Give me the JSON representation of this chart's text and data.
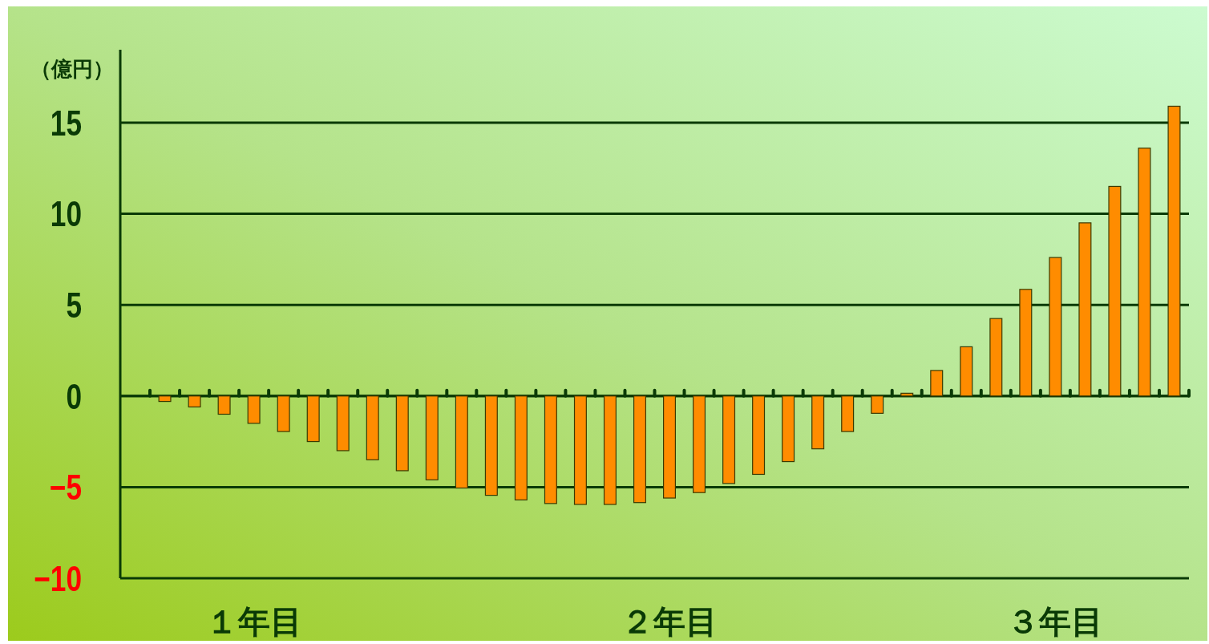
{
  "chart_data": {
    "type": "bar",
    "ylabel": "（億円）",
    "categories": [
      null,
      null,
      null,
      null,
      "１年目",
      null,
      null,
      null,
      null,
      null,
      null,
      null,
      null,
      null,
      null,
      null,
      null,
      null,
      "２年目",
      null,
      null,
      null,
      null,
      null,
      null,
      null,
      null,
      null,
      null,
      null,
      null,
      "３年目",
      null,
      null,
      null,
      null
    ],
    "values": [
      null,
      -0.3,
      -0.6,
      -1.0,
      -1.5,
      -1.95,
      -2.5,
      -3.0,
      -3.5,
      -4.1,
      -4.6,
      -5.05,
      -5.45,
      -5.7,
      -5.9,
      -5.95,
      -5.95,
      -5.85,
      -5.6,
      -5.3,
      -4.8,
      -4.3,
      -3.6,
      -2.9,
      -1.95,
      -0.95,
      0.15,
      1.4,
      2.7,
      4.25,
      5.85,
      7.6,
      9.5,
      11.5,
      13.6,
      15.9
    ],
    "color": "#ff8c00",
    "ylim": [
      -10,
      19
    ],
    "yticks": [
      -10,
      -5,
      0,
      5,
      10,
      15
    ],
    "grid": "y"
  }
}
